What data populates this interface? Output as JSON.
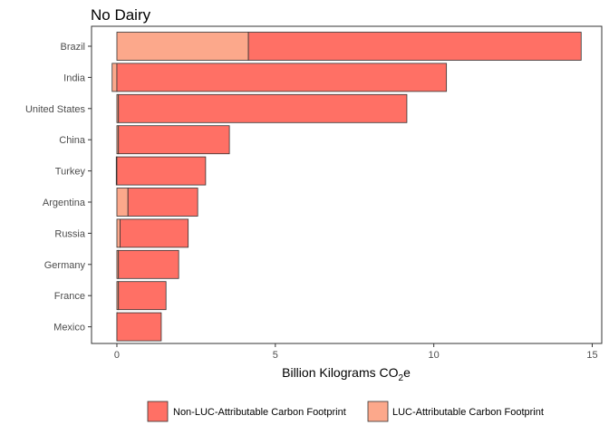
{
  "chart_data": {
    "type": "bar",
    "orientation": "horizontal",
    "stacked": true,
    "title": "No Dairy",
    "xlabel_main": "Billion Kilograms CO",
    "xlabel_sub": "2",
    "xlabel_suffix": "e",
    "ylabel": "",
    "xlim": [
      -0.8,
      15.3
    ],
    "x_ticks": [
      0,
      5,
      10,
      15
    ],
    "x_tick_labels": [
      "0",
      "5",
      "10",
      "15"
    ],
    "grid": false,
    "legend_position": "bottom",
    "categories": [
      "Brazil",
      "India",
      "United States",
      "China",
      "Turkey",
      "Argentina",
      "Russia",
      "Germany",
      "France",
      "Mexico"
    ],
    "series": [
      {
        "name": "Non-LUC-Attributable Carbon Footprint",
        "color": "#FF7065",
        "values": [
          10.5,
          10.4,
          9.1,
          3.5,
          2.8,
          2.2,
          2.15,
          1.9,
          1.5,
          1.4
        ]
      },
      {
        "name": "LUC-Attributable Carbon Footprint",
        "color": "#FCA88B",
        "values": [
          4.15,
          -0.15,
          0.05,
          0.05,
          -0.02,
          0.35,
          0.1,
          0.05,
          0.05,
          0.0
        ]
      }
    ],
    "legend": [
      {
        "label": "Non-LUC-Attributable Carbon Footprint",
        "color": "#FF7065"
      },
      {
        "label": "LUC-Attributable Carbon Footprint",
        "color": "#FCA88B"
      }
    ]
  }
}
